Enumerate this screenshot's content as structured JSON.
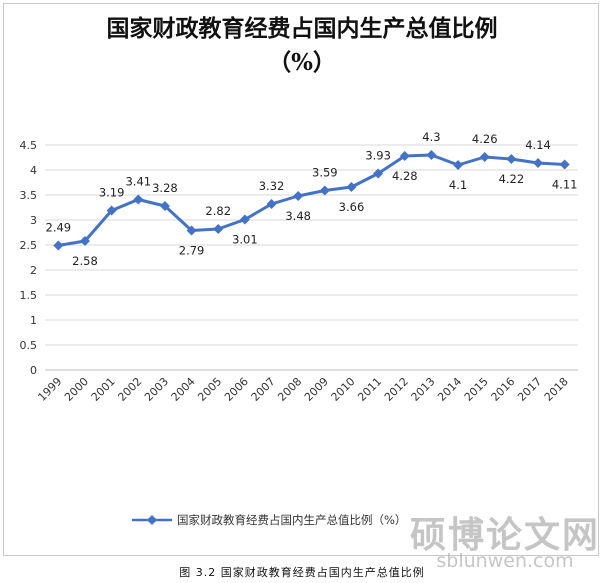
{
  "chart_data": {
    "type": "line",
    "title": "国家财政教育经费占国内生产总值比例",
    "subtitle": "（%）",
    "categories": [
      "1999",
      "2000",
      "2001",
      "2002",
      "2003",
      "2004",
      "2005",
      "2006",
      "2007",
      "2008",
      "2009",
      "2010",
      "2011",
      "2012",
      "2013",
      "2014",
      "2015",
      "2016",
      "2017",
      "2018"
    ],
    "series": [
      {
        "name": "国家财政教育经费占国内生产总值比例（%）",
        "values": [
          2.49,
          2.58,
          3.19,
          3.41,
          3.28,
          2.79,
          2.82,
          3.01,
          3.32,
          3.48,
          3.59,
          3.66,
          3.93,
          4.28,
          4.3,
          4.1,
          4.26,
          4.22,
          4.14,
          4.11
        ],
        "labels": [
          "2.49",
          "2.58",
          "3.19",
          "3.41",
          "3.28",
          "2.79",
          "2.82",
          "3.01",
          "3.32",
          "3.48",
          "3.59",
          "3.66",
          "3.93",
          "4.28",
          "4.3",
          "4.1",
          "4.26",
          "4.22",
          "4.14",
          "4.11"
        ],
        "color": "#4472c4"
      }
    ],
    "ylim": [
      0,
      4.5
    ],
    "yticks": [
      "0",
      "0.5",
      "1",
      "1.5",
      "2",
      "2.5",
      "3",
      "3.5",
      "4",
      "4.5"
    ],
    "grid": true,
    "legend": "bottom",
    "marker": "diamond"
  },
  "caption": "图 3.2  国家财政教育经费占国内生产总值比例",
  "watermark": {
    "text": "硕博论文网",
    "url": "sblunwen.com"
  }
}
